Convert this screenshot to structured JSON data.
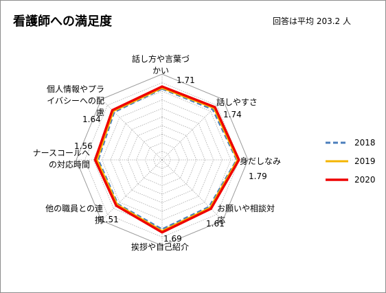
{
  "header": {
    "title": "看護師への満足度",
    "note": "回答は平均 203.2 人"
  },
  "chart_data": {
    "type": "radar",
    "title": "看護師への満足度",
    "rmin": 0,
    "rmax": 2,
    "grid": true,
    "legend_position": "right",
    "categories": [
      "話し方や言葉づかい",
      "話しやすさ",
      "身だしなみ",
      "お願いや相談対応",
      "挨拶や自己紹介",
      "他の職員との連携",
      "ナースコールへの対応時間",
      "個人情報やプライバシーへの配慮"
    ],
    "category_label_lines": [
      [
        "話し方や言葉づ",
        "かい"
      ],
      [
        "話しやすさ"
      ],
      [
        "身だしなみ"
      ],
      [
        "お願いや相談対",
        "応"
      ],
      [
        "挨拶や自己紹介"
      ],
      [
        "他の職員との連",
        "携"
      ],
      [
        "ナースコールへ",
        "の対応時間"
      ],
      [
        "個人情報やプラ",
        "イバシーへの配",
        "慮"
      ]
    ],
    "data_labels": [
      "1.71",
      "1.74",
      "1.79",
      "1.61",
      "1.69",
      "1.51",
      "1.56",
      "1.64"
    ],
    "series": [
      {
        "name": "2018",
        "color": "#4a7ebb",
        "dash": true,
        "values": [
          1.66,
          1.67,
          1.74,
          1.55,
          1.62,
          1.46,
          1.49,
          1.58
        ]
      },
      {
        "name": "2019",
        "color": "#f4b400",
        "dash": false,
        "values": [
          1.68,
          1.71,
          1.76,
          1.58,
          1.66,
          1.48,
          1.52,
          1.61
        ]
      },
      {
        "name": "2020",
        "color": "#ee0000",
        "dash": false,
        "values": [
          1.71,
          1.74,
          1.79,
          1.61,
          1.69,
          1.51,
          1.56,
          1.64
        ]
      }
    ]
  }
}
